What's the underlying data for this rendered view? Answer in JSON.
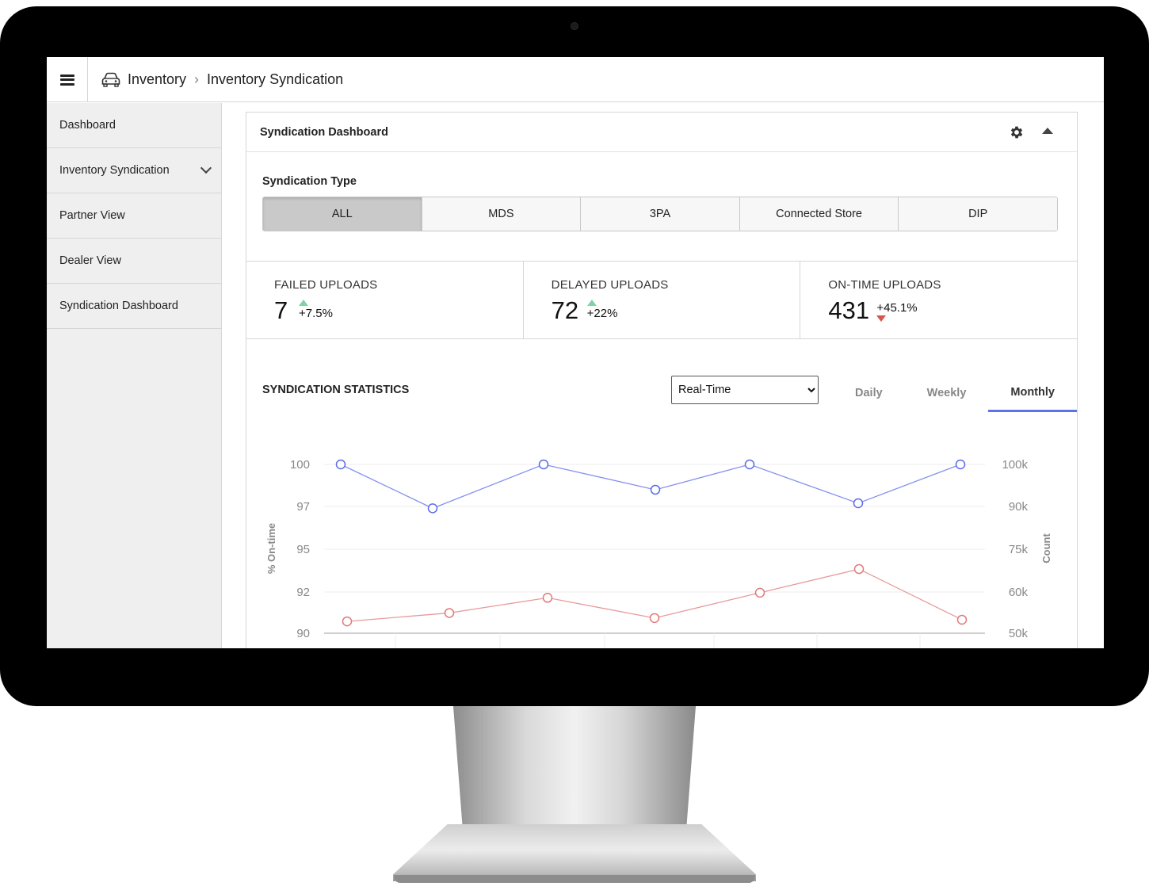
{
  "breadcrumb": {
    "root": "Inventory",
    "current": "Inventory Syndication"
  },
  "sidebar": {
    "items": [
      {
        "label": "Dashboard"
      },
      {
        "label": "Inventory Syndication"
      },
      {
        "label": "Partner View"
      },
      {
        "label": "Dealer View"
      },
      {
        "label": "Syndication Dashboard"
      }
    ]
  },
  "panel": {
    "title": "Syndication Dashboard"
  },
  "syndication_type": {
    "label": "Syndication Type",
    "options": [
      "ALL",
      "MDS",
      "3PA",
      "Connected Store",
      "DIP"
    ],
    "selected": "ALL"
  },
  "stats": [
    {
      "label": "FAILED UPLOADS",
      "value": "7",
      "delta": "+7.5%",
      "trend": "up"
    },
    {
      "label": "DELAYED UPLOADS",
      "value": "72",
      "delta": "+22%",
      "trend": "up"
    },
    {
      "label": "ON-TIME UPLOADS",
      "value": "431",
      "delta": "+45.1%",
      "trend": "down"
    }
  ],
  "statistics": {
    "title": "SYNDICATION STATISTICS",
    "range": "Real-Time",
    "tabs": [
      "Daily",
      "Weekly",
      "Monthly"
    ],
    "active_tab": "Monthly"
  },
  "colors": {
    "accent": "#5b73e8",
    "up": "#7fd4a4",
    "down": "#d9534f",
    "series_pct": "#5b6be8",
    "series_count": "#e07a7a"
  },
  "chart_data": {
    "type": "line",
    "ylabel": "% On-time",
    "y2label": "Count",
    "left_ticks": [
      "100",
      "97",
      "95",
      "92",
      "90"
    ],
    "right_ticks": [
      "100k",
      "90k",
      "75k",
      "60k",
      "50k"
    ],
    "ylim": [
      90,
      100
    ],
    "y2lim": [
      50000,
      100000
    ],
    "series": [
      {
        "axis": "left",
        "x": [
          1,
          2,
          3,
          4,
          5,
          6,
          7
        ],
        "values": [
          100,
          97.4,
          100,
          98.5,
          100,
          97.7,
          100
        ]
      },
      {
        "axis": "right",
        "x": [
          1,
          2,
          3,
          4,
          5,
          6,
          7
        ],
        "values": [
          53500,
          56000,
          60500,
          54500,
          62000,
          69000,
          54000
        ]
      }
    ],
    "grid": true
  }
}
